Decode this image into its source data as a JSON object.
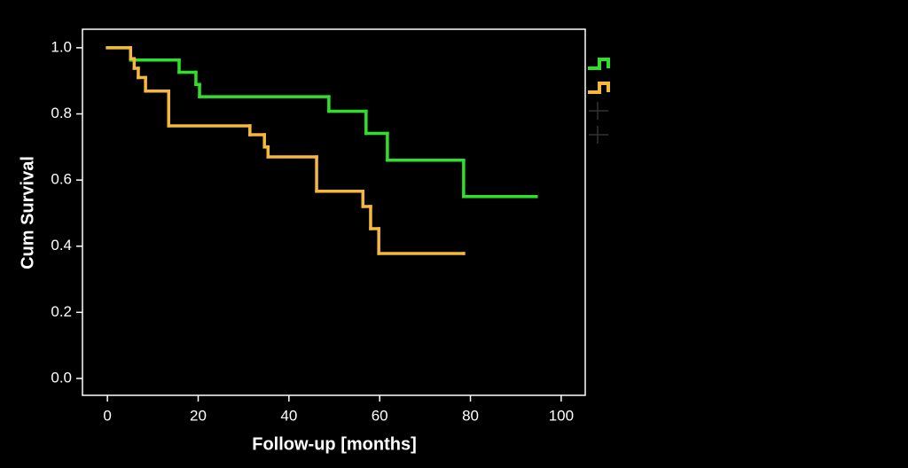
{
  "chart_data": {
    "type": "step",
    "x_label": "Follow-up [months]",
    "y_label": "Cum Survival",
    "xlim": [
      -5.5,
      105.3
    ],
    "ylim": [
      -0.051,
      1.056
    ],
    "xticks": [
      0,
      20,
      40,
      60,
      80,
      100
    ],
    "yticks": [
      {
        "value": 0,
        "label": "0.0"
      },
      0.2,
      0.4,
      0.6,
      0.8,
      {
        "value": 1,
        "label": "1.0"
      }
    ],
    "series": [
      {
        "color": "#2fe02a",
        "x": [
          0,
          5.1,
          15.8,
          19.5,
          20.3,
          48.8,
          57,
          61.7,
          78.5,
          94.5
        ],
        "values": [
          1,
          0.963,
          0.926,
          0.889,
          0.852,
          0.808,
          0.741,
          0.66,
          0.55,
          0.55
        ]
      },
      {
        "color": "#f5b83c",
        "x": [
          0,
          5.1,
          5.9,
          6.8,
          8.4,
          13.5,
          31.4,
          34.6,
          35.4,
          46.1,
          56.3,
          58,
          59.8,
          78.5
        ],
        "values": [
          1,
          0.967,
          0.938,
          0.91,
          0.869,
          0.764,
          0.737,
          0.7,
          0.67,
          0.566,
          0.52,
          0.453,
          0.378,
          0.378
        ]
      }
    ]
  }
}
